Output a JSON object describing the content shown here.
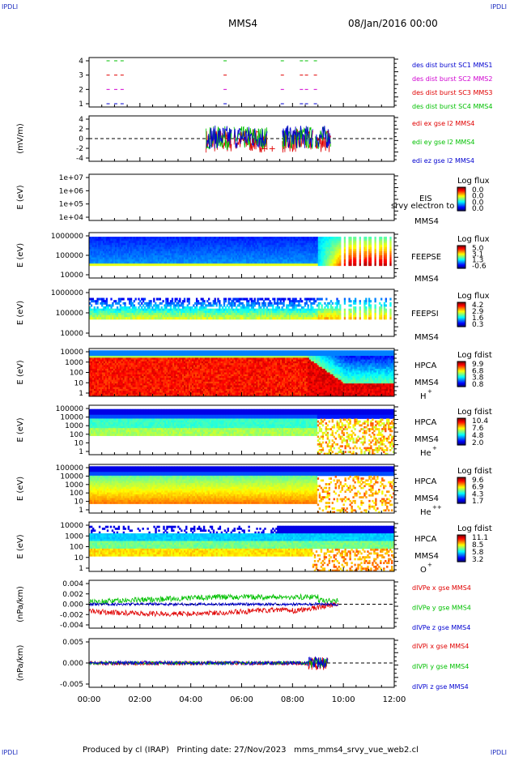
{
  "corner_label": "IPDLI",
  "header": {
    "title": "MMS4",
    "date": "08/Jan/2016 00:00"
  },
  "footer": {
    "text": "Produced by cl (IRAP)   Printing date: 27/Nov/2023   mms_mms4_srvy_vue_web2.cl"
  },
  "x_ticks": [
    "00:00",
    "02:00",
    "04:00",
    "06:00",
    "08:00",
    "10:00",
    "12:00"
  ],
  "colors": {
    "blue": "#0000d0",
    "magenta": "#d000d0",
    "red": "#e00000",
    "green": "#00c000"
  },
  "chart_data": [
    {
      "type": "scatter",
      "id": "burst",
      "yticks": [
        "4",
        "3",
        "2",
        "1"
      ],
      "legend": [
        {
          "name": "des dist burst SC1 MMS1",
          "color": "#0000d0"
        },
        {
          "name": "des dist burst SC2 MMS2",
          "color": "#d000d0"
        },
        {
          "name": "des dist burst SC3 MMS3",
          "color": "#e00000"
        },
        {
          "name": "des dist burst SC4 MMS4",
          "color": "#00c000"
        }
      ],
      "x_hours": [
        0.75,
        1.05,
        1.3,
        5.35,
        7.6,
        8.35,
        8.55,
        8.9
      ],
      "ylim": [
        0.5,
        4.5
      ]
    },
    {
      "type": "line",
      "id": "edi",
      "ylabel": "(mV/m)",
      "yticks": [
        "4",
        "2",
        "0",
        "-2",
        "-4"
      ],
      "ylim": [
        -5,
        5
      ],
      "active_range_hours": [
        4.4,
        9.5
      ],
      "series": [
        {
          "name": "edi ex gse l2 MMS4",
          "color": "#e00000"
        },
        {
          "name": "edi ey gse l2 MMS4",
          "color": "#00c000"
        },
        {
          "name": "edi ez gse l2 MMS4",
          "color": "#0000d0"
        }
      ]
    },
    {
      "type": "heatmap",
      "id": "eis",
      "ylabel": "E (eV)",
      "yticks": [
        "1e+07",
        "1e+06",
        "1e+05",
        "1e+04"
      ],
      "labels": [
        "EIS",
        "srvy electron to",
        "MMS4"
      ],
      "cbar": {
        "title": "Log flux",
        "ticks": [
          "0.0",
          "0.0",
          "0.0",
          "0.0"
        ]
      }
    },
    {
      "type": "heatmap",
      "id": "feepse",
      "ylabel": "E (eV)",
      "yticks": [
        "1000000",
        "100000",
        "10000"
      ],
      "labels": [
        "FEEPSE",
        "MMS4"
      ],
      "cbar": {
        "title": "Log flux",
        "ticks": [
          "5.0",
          "3.1",
          "1.3",
          "-0.6"
        ]
      }
    },
    {
      "type": "heatmap",
      "id": "feepsi",
      "ylabel": "E (eV)",
      "yticks": [
        "1000000",
        "100000",
        "10000"
      ],
      "labels": [
        "FEEPSI",
        "MMS4"
      ],
      "cbar": {
        "title": "Log flux",
        "ticks": [
          "4.2",
          "2.9",
          "1.6",
          "0.3"
        ]
      }
    },
    {
      "type": "heatmap",
      "id": "hpca_h",
      "ylabel": "E (eV)",
      "yticks": [
        "10000",
        "1000",
        "100",
        "10",
        "1"
      ],
      "labels": [
        "HPCA",
        "MMS4",
        "H",
        "+"
      ],
      "cbar": {
        "title": "Log fdist",
        "ticks": [
          "9.9",
          "6.8",
          "3.8",
          "0.8"
        ]
      }
    },
    {
      "type": "heatmap",
      "id": "hpca_he",
      "ylabel": "E (eV)",
      "yticks": [
        "100000",
        "10000",
        "1000",
        "100",
        "10",
        "1"
      ],
      "labels": [
        "HPCA",
        "MMS4",
        "He",
        "+"
      ],
      "cbar": {
        "title": "Log fdist",
        "ticks": [
          "10.4",
          "7.6",
          "4.8",
          "2.0"
        ]
      }
    },
    {
      "type": "heatmap",
      "id": "hpca_hepp",
      "ylabel": "E (eV)",
      "yticks": [
        "100000",
        "10000",
        "1000",
        "100",
        "10",
        "1"
      ],
      "labels": [
        "HPCA",
        "MMS4",
        "He",
        "++"
      ],
      "cbar": {
        "title": "Log fdist",
        "ticks": [
          "9.6",
          "6.9",
          "4.3",
          "1.7"
        ]
      }
    },
    {
      "type": "heatmap",
      "id": "hpca_o",
      "ylabel": "E (eV)",
      "yticks": [
        "10000",
        "1000",
        "100",
        "10",
        "1"
      ],
      "labels": [
        "HPCA",
        "MMS4",
        "O",
        "+"
      ],
      "cbar": {
        "title": "Log fdist",
        "ticks": [
          "11.1",
          "8.5",
          "5.8",
          "3.2"
        ]
      }
    },
    {
      "type": "line",
      "id": "divpe",
      "ylabel": "(nPa/km)",
      "yticks": [
        "0.004",
        "0.002",
        "0.000",
        "-0.002",
        "-0.004"
      ],
      "ylim": [
        -0.004,
        0.004
      ],
      "series": [
        {
          "name": "dIVPe x gse MMS4",
          "color": "#e00000"
        },
        {
          "name": "dIVPe y gse MMS4",
          "color": "#00c000"
        },
        {
          "name": "dIVPe z gse MMS4",
          "color": "#0000d0"
        }
      ]
    },
    {
      "type": "line",
      "id": "divpi",
      "ylabel": "(nPa/km)",
      "yticks": [
        "0.005",
        "0.000",
        "-0.005"
      ],
      "ylim": [
        -0.0075,
        0.0075
      ],
      "series": [
        {
          "name": "dIVPi x gse MMS4",
          "color": "#e00000"
        },
        {
          "name": "dIVPi y gse MMS4",
          "color": "#00c000"
        },
        {
          "name": "dIVPi z gse MMS4",
          "color": "#0000d0"
        }
      ]
    }
  ]
}
